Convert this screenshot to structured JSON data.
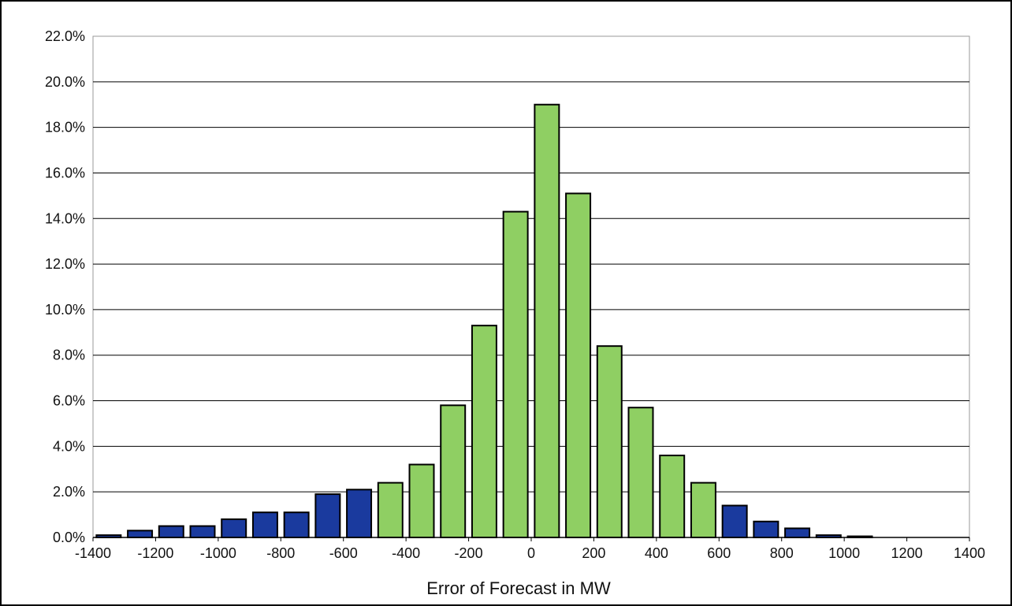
{
  "chart_data": {
    "type": "bar",
    "title": "",
    "xlabel": "Error of Forecast in MW",
    "ylabel": "",
    "x_ticks": [
      "-1400",
      "-1200",
      "-1000",
      "-800",
      "-600",
      "-400",
      "-200",
      "0",
      "200",
      "400",
      "600",
      "800",
      "1000",
      "1200",
      "1400"
    ],
    "y_ticks": [
      "0.0%",
      "2.0%",
      "4.0%",
      "6.0%",
      "8.0%",
      "10.0%",
      "12.0%",
      "14.0%",
      "16.0%",
      "18.0%",
      "20.0%",
      "22.0%"
    ],
    "xlim": [
      -1400,
      1400
    ],
    "ylim": [
      0,
      22
    ],
    "grid": "horizontal",
    "bins": [
      {
        "center": -1350,
        "value": 0.1,
        "group": "blue"
      },
      {
        "center": -1250,
        "value": 0.3,
        "group": "blue"
      },
      {
        "center": -1150,
        "value": 0.5,
        "group": "blue"
      },
      {
        "center": -1050,
        "value": 0.5,
        "group": "blue"
      },
      {
        "center": -950,
        "value": 0.8,
        "group": "blue"
      },
      {
        "center": -850,
        "value": 1.1,
        "group": "blue"
      },
      {
        "center": -750,
        "value": 1.1,
        "group": "blue"
      },
      {
        "center": -650,
        "value": 1.9,
        "group": "blue"
      },
      {
        "center": -550,
        "value": 2.1,
        "group": "blue"
      },
      {
        "center": -450,
        "value": 2.4,
        "group": "green"
      },
      {
        "center": -350,
        "value": 3.2,
        "group": "green"
      },
      {
        "center": -250,
        "value": 5.8,
        "group": "green"
      },
      {
        "center": -150,
        "value": 9.3,
        "group": "green"
      },
      {
        "center": -50,
        "value": 14.3,
        "group": "green"
      },
      {
        "center": 50,
        "value": 19.0,
        "group": "green"
      },
      {
        "center": 150,
        "value": 15.1,
        "group": "green"
      },
      {
        "center": 250,
        "value": 8.4,
        "group": "green"
      },
      {
        "center": 350,
        "value": 5.7,
        "group": "green"
      },
      {
        "center": 450,
        "value": 3.6,
        "group": "green"
      },
      {
        "center": 550,
        "value": 2.4,
        "group": "green"
      },
      {
        "center": 650,
        "value": 1.4,
        "group": "blue"
      },
      {
        "center": 750,
        "value": 0.7,
        "group": "blue"
      },
      {
        "center": 850,
        "value": 0.4,
        "group": "blue"
      },
      {
        "center": 950,
        "value": 0.1,
        "group": "blue"
      },
      {
        "center": 1050,
        "value": 0.05,
        "group": "blue"
      },
      {
        "center": 1150,
        "value": 0,
        "group": "blue"
      },
      {
        "center": 1250,
        "value": 0,
        "group": "blue"
      },
      {
        "center": 1350,
        "value": 0,
        "group": "blue"
      }
    ],
    "colors": {
      "blue": "#1a3a9e",
      "green": "#8fcf63",
      "bar_outline": "#000000",
      "grid": "#000000",
      "frame": "#9a9a9a"
    }
  }
}
